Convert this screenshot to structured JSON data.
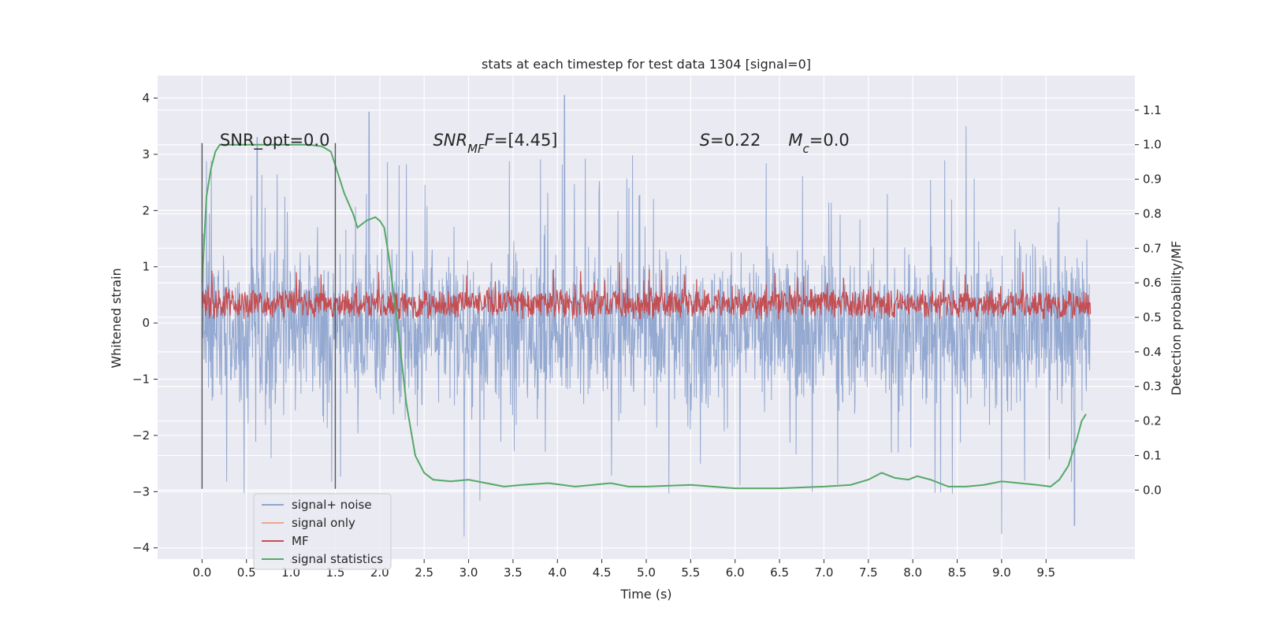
{
  "chart_data": {
    "type": "line",
    "title": "stats at each timestep for test data 1304 [signal=0]",
    "xlabel": "Time (s)",
    "ylabel_left": "Whitened strain",
    "ylabel_right": "Detection probability/MF",
    "xlim": [
      -0.5,
      10.5
    ],
    "ylim_left": [
      -4.2,
      4.4
    ],
    "ylim_right": [
      -0.2,
      1.2
    ],
    "x_ticks": [
      "0.0",
      "0.5",
      "1.0",
      "1.5",
      "2.0",
      "2.5",
      "3.0",
      "3.5",
      "4.0",
      "4.5",
      "5.0",
      "5.5",
      "6.0",
      "6.5",
      "7.0",
      "7.5",
      "8.0",
      "8.5",
      "9.0",
      "9.5"
    ],
    "x_tick_values": [
      0,
      0.5,
      1,
      1.5,
      2,
      2.5,
      3,
      3.5,
      4,
      4.5,
      5,
      5.5,
      6,
      6.5,
      7,
      7.5,
      8,
      8.5,
      9,
      9.5
    ],
    "y_left_ticks": [
      "4",
      "3",
      "2",
      "1",
      "0",
      "−1",
      "−2",
      "−3",
      "−4"
    ],
    "y_left_tick_values": [
      4,
      3,
      2,
      1,
      0,
      -1,
      -2,
      -3,
      -4
    ],
    "y_right_ticks": [
      "1.1",
      "1.0",
      "0.9",
      "0.8",
      "0.7",
      "0.6",
      "0.5",
      "0.4",
      "0.3",
      "0.2",
      "0.1",
      "0.0"
    ],
    "y_right_tick_values": [
      1.1,
      1.0,
      0.9,
      0.8,
      0.7,
      0.6,
      0.5,
      0.4,
      0.3,
      0.2,
      0.1,
      0.0
    ],
    "grid": true,
    "legend_position": "lower-left",
    "series": [
      {
        "name": "signal+ noise",
        "color": "#8fa5cf",
        "axis": "left",
        "kind": "noise",
        "x_range": [
          0,
          10
        ],
        "center": -0.1,
        "band": [
          -1.8,
          1.9
        ],
        "peaks": [
          [
            4.08,
            4.05
          ],
          [
            1.88,
            3.75
          ],
          [
            0.62,
            3.3
          ],
          [
            8.6,
            3.5
          ],
          [
            2.95,
            -3.8
          ],
          [
            9.0,
            -3.75
          ],
          [
            9.82,
            -3.6
          ]
        ]
      },
      {
        "name": "signal only",
        "color": "#e8a890",
        "axis": "left",
        "values": []
      },
      {
        "name": "MF",
        "color": "#c44e52",
        "axis": "right",
        "kind": "noise",
        "x_range": [
          0,
          10
        ],
        "center": 0.54,
        "band": [
          0.5,
          0.62
        ],
        "peaks": [
          [
            4.7,
            0.66
          ]
        ]
      },
      {
        "name": "signal statistics",
        "color": "#55a868",
        "axis": "right",
        "x": [
          0,
          0.05,
          0.1,
          0.15,
          0.2,
          0.3,
          0.5,
          0.8,
          1.0,
          1.2,
          1.35,
          1.45,
          1.5,
          1.6,
          1.7,
          1.75,
          1.85,
          1.95,
          2.0,
          2.05,
          2.1,
          2.2,
          2.3,
          2.4,
          2.5,
          2.6,
          2.8,
          3.0,
          3.2,
          3.4,
          3.6,
          3.9,
          4.2,
          4.4,
          4.6,
          4.8,
          5.0,
          5.5,
          6.0,
          6.5,
          7.0,
          7.3,
          7.5,
          7.65,
          7.8,
          7.95,
          8.05,
          8.2,
          8.4,
          8.6,
          8.8,
          9.0,
          9.2,
          9.4,
          9.55,
          9.65,
          9.75,
          9.85,
          9.9,
          9.95
        ],
        "y": [
          0.6,
          0.85,
          0.93,
          0.98,
          1.0,
          1.0,
          1.0,
          1.0,
          1.0,
          1.0,
          0.995,
          0.98,
          0.94,
          0.86,
          0.8,
          0.76,
          0.78,
          0.79,
          0.78,
          0.76,
          0.68,
          0.48,
          0.25,
          0.1,
          0.05,
          0.03,
          0.025,
          0.03,
          0.02,
          0.01,
          0.015,
          0.02,
          0.01,
          0.015,
          0.02,
          0.01,
          0.01,
          0.015,
          0.005,
          0.005,
          0.01,
          0.015,
          0.03,
          0.05,
          0.035,
          0.03,
          0.04,
          0.03,
          0.01,
          0.01,
          0.015,
          0.025,
          0.02,
          0.015,
          0.01,
          0.03,
          0.07,
          0.15,
          0.2,
          0.22
        ]
      }
    ],
    "vlines": [
      {
        "x": 0.0,
        "y_range": [
          -2.95,
          3.2
        ]
      },
      {
        "x": 1.5,
        "y_range": [
          -2.95,
          3.2
        ]
      }
    ],
    "annotations": [
      {
        "text": "SNR_opt=0.0",
        "x": 0.2,
        "y": 3.15
      },
      {
        "text_parts": [
          [
            "SNR",
            "italic"
          ],
          [
            "MF",
            "sub-italic"
          ],
          [
            "F",
            "italic"
          ],
          [
            "=[4.45]",
            "normal"
          ]
        ],
        "x": 2.6,
        "y": 3.15
      },
      {
        "text_parts": [
          [
            "S",
            "italic"
          ],
          [
            "=0.22",
            "normal"
          ]
        ],
        "x": 5.6,
        "y": 3.15
      },
      {
        "text_parts": [
          [
            "M",
            "italic"
          ],
          [
            "c",
            "sub-italic"
          ],
          [
            "=0.0",
            "normal"
          ]
        ],
        "x": 6.6,
        "y": 3.15
      }
    ],
    "legend": [
      "signal+ noise",
      "signal only",
      "MF",
      "signal statistics"
    ]
  }
}
